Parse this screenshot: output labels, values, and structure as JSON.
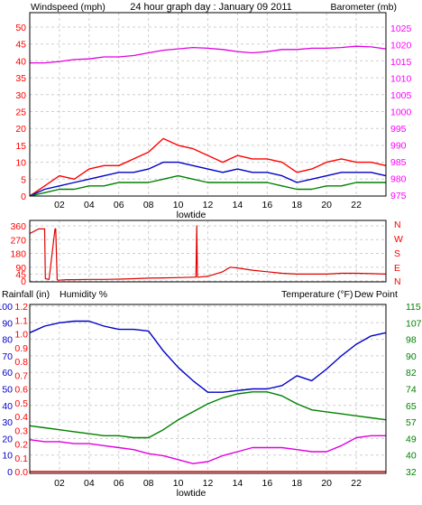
{
  "page": {
    "title": "24 hour graph day : January 09 2011"
  },
  "colors": {
    "red": "#ff0000",
    "magenta": "#ff00ff",
    "blue": "#0000c8",
    "green": "#008000",
    "windspeed": "#ff0000",
    "gust": "#ff0000",
    "average": "#0000c8",
    "min": "#008000",
    "barometer": "#e000e0",
    "direction": "#dd0000",
    "humidity": "#0000c8",
    "temperature": "#008000",
    "dewpoint": "#e000e0",
    "rainfall": "#dd0000"
  },
  "chart_data": [
    {
      "type": "line",
      "name": "wind-barometer",
      "title": "24 hour graph day : January 09 2011",
      "left_axis_label": "Windspeed (mph)",
      "right_axis_label": "Barometer (mb)",
      "x_labels": [
        "02",
        "04",
        "06",
        "08",
        "10",
        "12",
        "14",
        "16",
        "18",
        "20",
        "22"
      ],
      "x_marker_label": "lowtide",
      "x_range": [
        0,
        24
      ],
      "y_left_ticks": [
        0,
        5,
        10,
        15,
        20,
        25,
        30,
        35,
        40,
        45,
        50
      ],
      "y_left_range": [
        0,
        50
      ],
      "y_right_ticks": [
        975,
        980,
        985,
        990,
        995,
        1000,
        1005,
        1010,
        1015,
        1020,
        1025
      ],
      "y_right_range": [
        972.5,
        1027.5
      ],
      "grid": true,
      "series": [
        {
          "axis": "right",
          "x": [
            0,
            1,
            2,
            3,
            4,
            5,
            6,
            7,
            8,
            9,
            10,
            11,
            12,
            13,
            14,
            15,
            16,
            17,
            18,
            19,
            20,
            21,
            22,
            23,
            24
          ],
          "values": [
            1014.6,
            1014.6,
            1015.0,
            1015.6,
            1015.8,
            1016.4,
            1016.4,
            1016.8,
            1017.6,
            1018.4,
            1018.8,
            1019.2,
            1019.0,
            1018.6,
            1018.0,
            1017.6,
            1018.0,
            1018.6,
            1018.6,
            1019.0,
            1019.0,
            1019.2,
            1019.6,
            1019.4,
            1018.8
          ]
        },
        {
          "axis": "left",
          "x": [
            0,
            1,
            2,
            3,
            4,
            5,
            6,
            7,
            8,
            9,
            10,
            11,
            12,
            13,
            14,
            15,
            16,
            17,
            18,
            19,
            20,
            21,
            22,
            23,
            24
          ],
          "values": [
            0,
            3,
            6,
            5,
            8,
            9,
            9,
            11,
            13,
            17,
            15,
            14,
            12,
            10,
            12,
            11,
            11,
            10,
            7,
            8,
            10,
            11,
            10,
            10,
            9
          ]
        },
        {
          "axis": "left",
          "x": [
            0,
            1,
            2,
            3,
            4,
            5,
            6,
            7,
            8,
            9,
            10,
            11,
            12,
            13,
            14,
            15,
            16,
            17,
            18,
            19,
            20,
            21,
            22,
            23,
            24
          ],
          "values": [
            0,
            2,
            3,
            4,
            5,
            6,
            7,
            7,
            8,
            10,
            10,
            9,
            8,
            7,
            8,
            7,
            7,
            6,
            4,
            5,
            6,
            7,
            7,
            7,
            6
          ]
        },
        {
          "axis": "left",
          "x": [
            0,
            1,
            2,
            3,
            4,
            5,
            6,
            7,
            8,
            9,
            10,
            11,
            12,
            13,
            14,
            15,
            16,
            17,
            18,
            19,
            20,
            21,
            22,
            23,
            24
          ],
          "values": [
            0,
            1,
            2,
            2,
            3,
            3,
            4,
            4,
            4,
            5,
            6,
            5,
            4,
            4,
            4,
            4,
            4,
            3,
            2,
            2,
            3,
            3,
            4,
            4,
            4
          ]
        }
      ]
    },
    {
      "type": "line",
      "name": "wind-direction",
      "x_labels": [
        "02",
        "04",
        "06",
        "08",
        "10",
        "12",
        "14",
        "16",
        "18",
        "20",
        "22"
      ],
      "x_range": [
        0,
        24
      ],
      "y_left_ticks": [
        0,
        45,
        90,
        180,
        270,
        360
      ],
      "y_range": [
        0,
        360
      ],
      "y_right_labels": [
        "N",
        "W",
        "S",
        "E",
        "N"
      ],
      "grid": true,
      "series": [
        {
          "x": [
            0,
            0.6,
            0.9,
            1.0,
            1.05,
            1.3,
            1.7,
            1.75,
            1.85,
            1.9,
            2.5,
            3,
            4,
            5,
            6,
            7,
            8,
            9,
            10,
            11,
            11.2,
            11.25,
            11.3,
            12,
            13,
            13.5,
            14,
            15,
            16,
            17,
            18,
            19,
            20,
            21,
            22,
            23,
            24
          ],
          "values": [
            310,
            340,
            340,
            340,
            15,
            10,
            340,
            340,
            10,
            5,
            8,
            8,
            10,
            10,
            12,
            15,
            18,
            20,
            22,
            25,
            25,
            360,
            25,
            30,
            60,
            90,
            85,
            70,
            60,
            50,
            45,
            45,
            45,
            50,
            50,
            48,
            45
          ]
        }
      ]
    },
    {
      "type": "line",
      "name": "humidity-temperature",
      "left_axis_label": "Rainfall (in)",
      "humidity_label": "Humidity %",
      "right_axis_label": "Temperature (°F)",
      "dewpoint_label": "Dew Point",
      "x_labels": [
        "02",
        "04",
        "06",
        "08",
        "10",
        "12",
        "14",
        "16",
        "18",
        "20",
        "22"
      ],
      "x_marker_label": "lowtide",
      "x_range": [
        0,
        24
      ],
      "humidity_ticks": [
        0,
        10,
        20,
        30,
        40,
        50,
        60,
        70,
        80,
        90,
        100
      ],
      "rainfall_ticks": [
        0.0,
        0.1,
        0.2,
        0.3,
        0.4,
        0.5,
        0.6,
        0.7,
        0.8,
        0.9,
        1.0,
        1.1,
        1.2
      ],
      "temperature_ticks": [
        32,
        40,
        49,
        57,
        65,
        74,
        82,
        90,
        98,
        107,
        115
      ],
      "humidity_range": [
        0,
        100
      ],
      "temperature_range": [
        32,
        115
      ],
      "grid": true,
      "series": [
        {
          "axis": "humidity",
          "x": [
            0,
            1,
            2,
            3,
            4,
            5,
            6,
            7,
            8,
            9,
            10,
            11,
            12,
            13,
            14,
            15,
            16,
            17,
            18,
            19,
            20,
            21,
            22,
            23,
            24
          ],
          "values": [
            84,
            88,
            90,
            91,
            91,
            88,
            86,
            86,
            85,
            73,
            63,
            55,
            48,
            48,
            49,
            50,
            50,
            52,
            58,
            55,
            62,
            70,
            77,
            82,
            84
          ]
        },
        {
          "axis": "temperature",
          "x": [
            0,
            1,
            2,
            3,
            4,
            5,
            6,
            7,
            8,
            9,
            10,
            11,
            12,
            13,
            14,
            15,
            16,
            17,
            18,
            19,
            20,
            21,
            22,
            23,
            24
          ],
          "values": [
            55,
            54,
            53,
            52,
            51,
            50,
            50,
            49,
            49,
            53,
            58,
            62,
            66,
            69,
            71,
            72,
            72,
            70,
            66,
            63,
            62,
            61,
            60,
            59,
            58
          ]
        },
        {
          "axis": "temperature",
          "x": [
            0,
            1,
            2,
            3,
            4,
            5,
            6,
            7,
            8,
            9,
            10,
            11,
            12,
            13,
            14,
            15,
            16,
            17,
            18,
            19,
            20,
            21,
            22,
            23,
            24
          ],
          "values": [
            48,
            47,
            47,
            46,
            46,
            45,
            44,
            43,
            41,
            40,
            38,
            36,
            37,
            40,
            42,
            44,
            44,
            44,
            43,
            42,
            42,
            45,
            49,
            50,
            50
          ]
        },
        {
          "axis": "rainfall",
          "x": [
            0,
            24
          ],
          "values": [
            0.0,
            0.0
          ]
        }
      ]
    }
  ]
}
